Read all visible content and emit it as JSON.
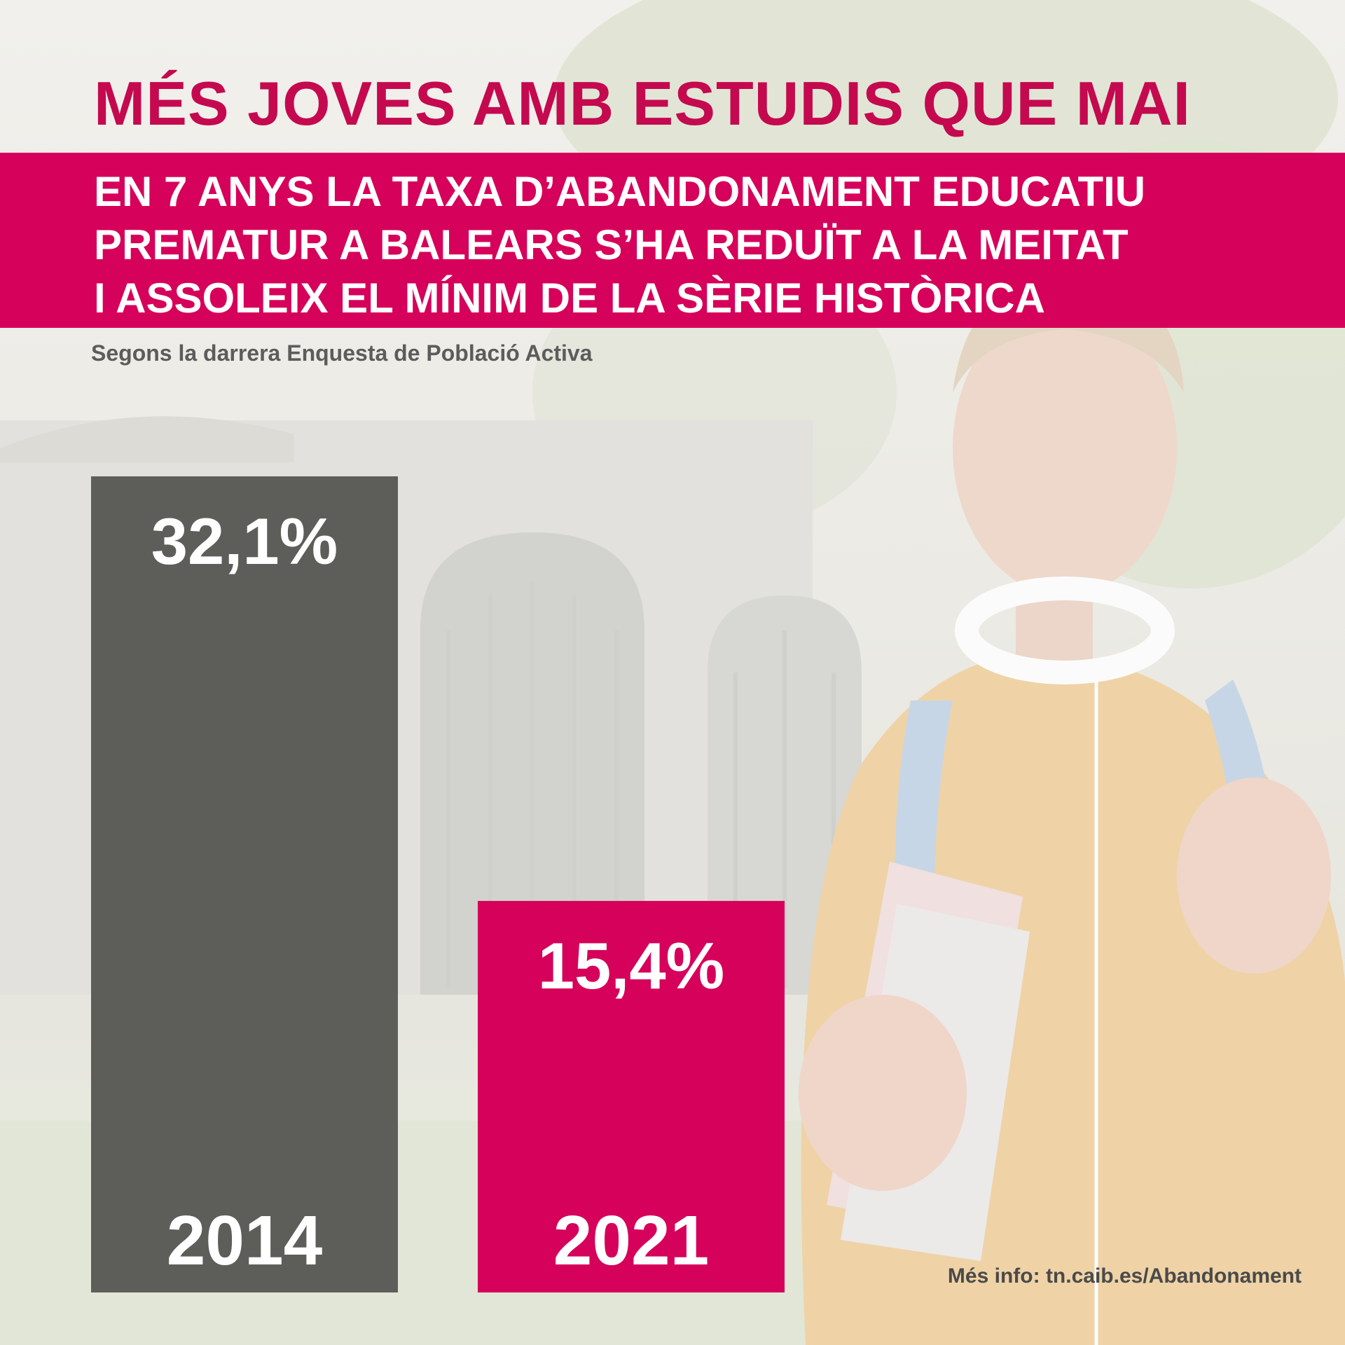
{
  "title": "MÉS JOVES AMB ESTUDIS QUE MAI",
  "banner": {
    "lines": [
      "EN 7 ANYS LA TAXA D’ABANDONAMENT EDUCATIU",
      "PREMATUR A BALEARS S’HA REDUÏT A LA MEITAT",
      "I ASSOLEIX EL MÍNIM DE LA SÈRIE HISTÒRICA"
    ]
  },
  "source": "Segons la darrera Enquesta de Població Activa",
  "more_info": {
    "label": "Més info:",
    "link": "tn.caib.es/Abandonament"
  },
  "colors": {
    "brand_magenta": "#d6015a",
    "title_magenta": "#c4094f",
    "bar_2014": "#5d5e59",
    "bar_2021": "#d6015a"
  },
  "chart_data": {
    "type": "bar",
    "categories": [
      "2014",
      "2021"
    ],
    "values": [
      32.1,
      15.4
    ],
    "value_labels": [
      "32,1%",
      "15,4%"
    ],
    "unit": "%",
    "ylim": [
      0,
      32.1
    ],
    "grid": false,
    "legend": "none",
    "title": "",
    "xlabel": "",
    "ylabel": ""
  }
}
